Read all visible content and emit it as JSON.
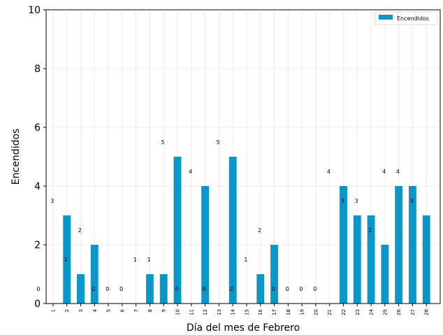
{
  "chart_data": {
    "type": "bar",
    "title": "",
    "xlabel": "Día del mes de Febrero",
    "ylabel": "Encendidos",
    "ylim": [
      0,
      10
    ],
    "yticks": [
      "0",
      "2",
      "4",
      "6",
      "8",
      "10"
    ],
    "grid": true,
    "legend_position": "top-right",
    "categories": [
      "1",
      "2",
      "3",
      "4",
      "5",
      "6",
      "7",
      "8",
      "9",
      "10",
      "11",
      "12",
      "13",
      "14",
      "15",
      "16",
      "17",
      "18",
      "19",
      "20",
      "21",
      "22",
      "23",
      "24",
      "25",
      "26",
      "27",
      "28"
    ],
    "series": [
      {
        "name": "Encendidos",
        "color": "#0a96c8",
        "values": [
          0,
          3,
          1,
          2,
          0,
          0,
          0,
          1,
          1,
          5,
          0,
          4,
          0,
          5,
          0,
          1,
          2,
          0,
          0,
          0,
          0,
          4,
          3,
          3,
          2,
          4,
          4,
          3
        ]
      }
    ]
  }
}
